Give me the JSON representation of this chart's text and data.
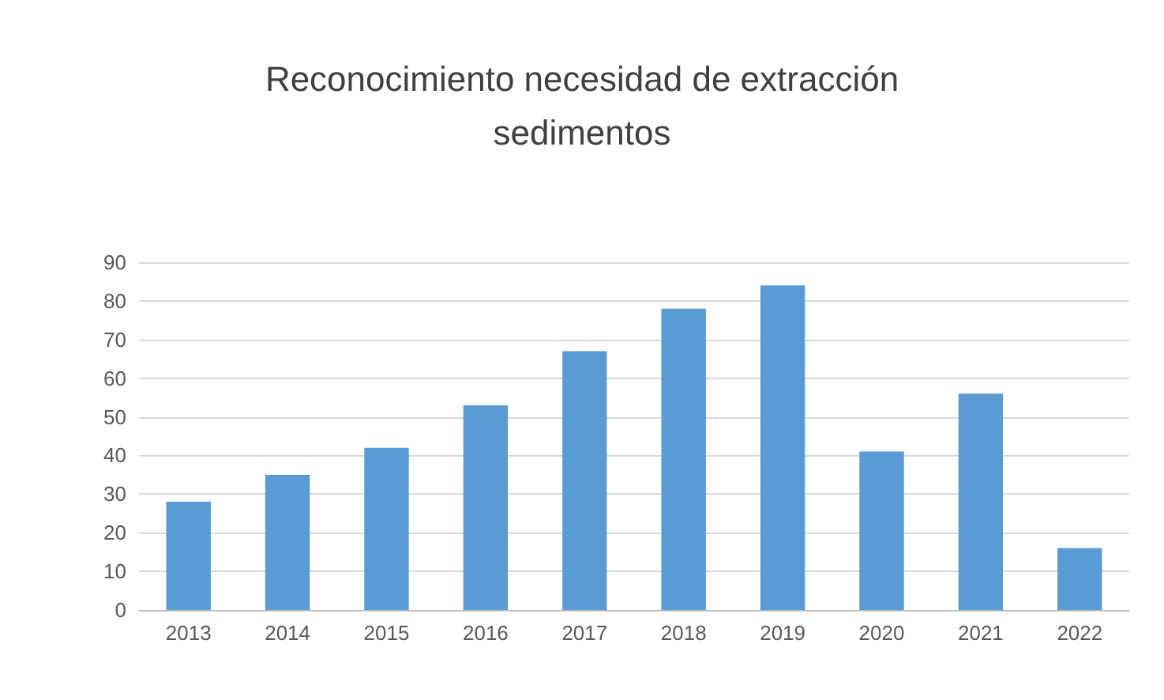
{
  "chart_data": {
    "type": "bar",
    "title": "Reconocimiento necesidad de extracción\nsedimentos",
    "categories": [
      "2013",
      "2014",
      "2015",
      "2016",
      "2017",
      "2018",
      "2019",
      "2020",
      "2021",
      "2022"
    ],
    "values": [
      28,
      35,
      42,
      53,
      67,
      78,
      84,
      41,
      56,
      16
    ],
    "color": "#5b9bd5",
    "ylim": [
      0,
      90
    ],
    "yticks": [
      0,
      10,
      20,
      30,
      40,
      50,
      60,
      70,
      80,
      90
    ],
    "grid": "y"
  }
}
